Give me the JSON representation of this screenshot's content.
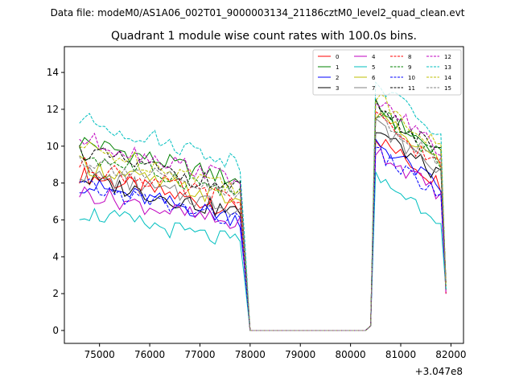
{
  "chart_data": {
    "type": "line",
    "suptitle": "Data file: modeM0/AS1A06_002T01_9000003134_21186cztM0_level2_quad_clean.evt",
    "title": "Quadrant 1 module wise count rates with 100.0s bins.",
    "xlabel": "",
    "ylabel": "",
    "x_offset_label": "+3.047e8",
    "xlim": [
      74300,
      82250
    ],
    "ylim": [
      -0.7,
      15.4
    ],
    "xticks": [
      75000,
      76000,
      77000,
      78000,
      79000,
      80000,
      81000,
      82000
    ],
    "yticks": [
      0,
      2,
      4,
      6,
      8,
      10,
      12,
      14
    ],
    "x_start": 74600,
    "x_step": 100,
    "segments": [
      {
        "from": 74600,
        "to": 77800,
        "style": "active1"
      },
      {
        "from": 78100,
        "to": 80300,
        "style": "zero"
      },
      {
        "from": 80500,
        "to": 81800,
        "style": "active2"
      }
    ],
    "series": [
      {
        "name": "0",
        "color": "#ff0000",
        "dash": "solid",
        "level1": 7.5,
        "level2": 9.2
      },
      {
        "name": "1",
        "color": "#008000",
        "dash": "solid",
        "level1": 9.2,
        "level2": 10.8
      },
      {
        "name": "2",
        "color": "#0000ff",
        "dash": "solid",
        "level1": 7.0,
        "level2": 9.0
      },
      {
        "name": "3",
        "color": "#000000",
        "dash": "solid",
        "level1": 7.3,
        "level2": 9.6
      },
      {
        "name": "4",
        "color": "#bf00bf",
        "dash": "solid",
        "level1": 6.6,
        "level2": 8.6
      },
      {
        "name": "5",
        "color": "#00bfbf",
        "dash": "solid",
        "level1": 5.6,
        "level2": 7.2
      },
      {
        "name": "6",
        "color": "#bfbf00",
        "dash": "solid",
        "level1": 8.0,
        "level2": 10.4
      },
      {
        "name": "7",
        "color": "#808080",
        "dash": "solid",
        "level1": 7.6,
        "level2": 9.9
      },
      {
        "name": "8",
        "color": "#ff0000",
        "dash": "dashed",
        "level1": 8.0,
        "level2": 10.2
      },
      {
        "name": "9",
        "color": "#008000",
        "dash": "dashed",
        "level1": 8.5,
        "level2": 10.6
      },
      {
        "name": "10",
        "color": "#0000ff",
        "dash": "dashed",
        "level1": 6.9,
        "level2": 8.5
      },
      {
        "name": "11",
        "color": "#000000",
        "dash": "dashed",
        "level1": 8.7,
        "level2": 10.9
      },
      {
        "name": "12",
        "color": "#bf00bf",
        "dash": "dashed",
        "level1": 9.3,
        "level2": 11.2
      },
      {
        "name": "13",
        "color": "#00bfbf",
        "dash": "dashed",
        "level1": 10.3,
        "level2": 12.0
      },
      {
        "name": "14",
        "color": "#bfbf00",
        "dash": "dashed",
        "level1": 8.9,
        "level2": 11.3
      },
      {
        "name": "15",
        "color": "#808080",
        "dash": "dashed",
        "level1": 8.3,
        "level2": 10.4
      }
    ]
  }
}
